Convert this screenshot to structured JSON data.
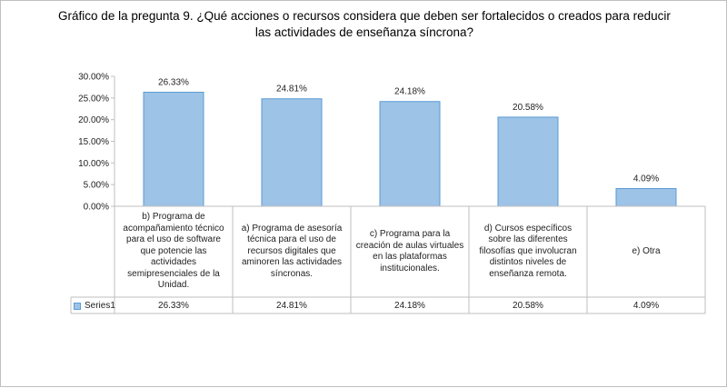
{
  "chart_data": {
    "type": "bar",
    "title": "Gráfico de la pregunta 9. ¿Qué acciones o recursos considera que deben ser fortalecidos o creados para reducir las actividades de enseñanza síncrona?",
    "categories": [
      "b) Programa de acompañamiento técnico para el uso de software que potencie las actividades semipresenciales de la Unidad.",
      "a) Programa de asesoría técnica para el uso de recursos digitales que aminoren las actividades síncronas.",
      "c) Programa para la creación de aulas virtuales en las plataformas institucionales.",
      "d) Cursos específicos sobre las diferentes filosofías que involucran distintos niveles de enseñanza remota.",
      "e) Otra"
    ],
    "series": [
      {
        "name": "Series1",
        "values": [
          26.33,
          24.81,
          24.18,
          20.58,
          4.09
        ]
      }
    ],
    "data_labels": [
      "26.33%",
      "24.81%",
      "24.18%",
      "20.58%",
      "4.09%"
    ],
    "y_ticks": [
      "0.00%",
      "5.00%",
      "10.00%",
      "15.00%",
      "20.00%",
      "25.00%",
      "30.00%"
    ],
    "ylim": [
      0,
      30
    ],
    "grid": false,
    "legend": "data-table",
    "colors": {
      "bar_fill": "#9dc3e6",
      "bar_stroke": "#5b9bd5",
      "axis": "#bfbfbf"
    }
  }
}
